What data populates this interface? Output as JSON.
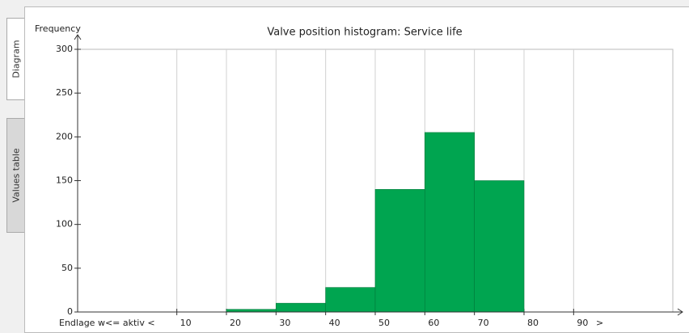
{
  "tabs": [
    "Diagram",
    "Values table"
  ],
  "chart_data": {
    "type": "histogram",
    "title": "Valve position histogram: Service life",
    "ylabel": "Frequency",
    "bins": [
      20,
      30,
      40,
      50,
      60,
      70,
      80
    ],
    "values": [
      3,
      10,
      28,
      140,
      205,
      150
    ],
    "color": "#00a550",
    "xlim": [
      -10,
      110
    ],
    "xticks": [
      10,
      20,
      30,
      40,
      50,
      60,
      70,
      80,
      90
    ],
    "x_range_labels": {
      "below": "Endlage w<= aktiv <",
      "above": ">"
    },
    "ylim": [
      0,
      300
    ],
    "yticks": [
      0,
      50,
      100,
      150,
      200,
      250,
      300
    ],
    "grid": true
  }
}
